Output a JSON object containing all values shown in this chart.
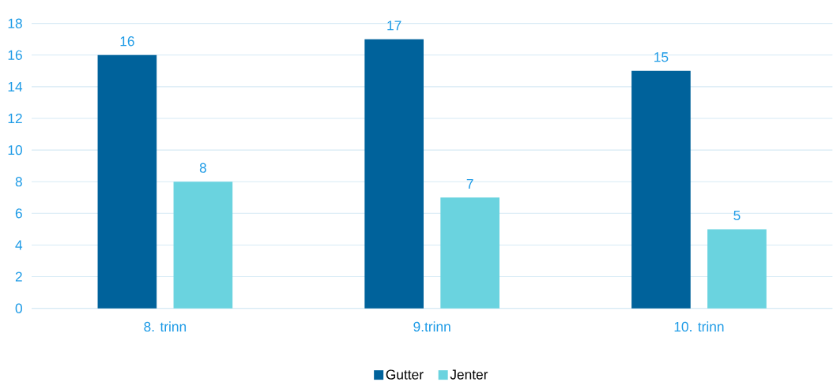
{
  "chart_data": {
    "type": "bar",
    "categories": [
      "8. trinn",
      "9.trinn",
      "10. trinn"
    ],
    "series": [
      {
        "name": "Gutter",
        "color": "#00629b",
        "values": [
          16,
          17,
          15
        ]
      },
      {
        "name": "Jenter",
        "color": "#6ad3df",
        "values": [
          8,
          7,
          5
        ]
      }
    ],
    "ylim": [
      0,
      18
    ],
    "yticks": [
      0,
      2,
      4,
      6,
      8,
      10,
      12,
      14,
      16,
      18
    ],
    "grid": "y",
    "legend": "bottom",
    "data_labels": true
  }
}
